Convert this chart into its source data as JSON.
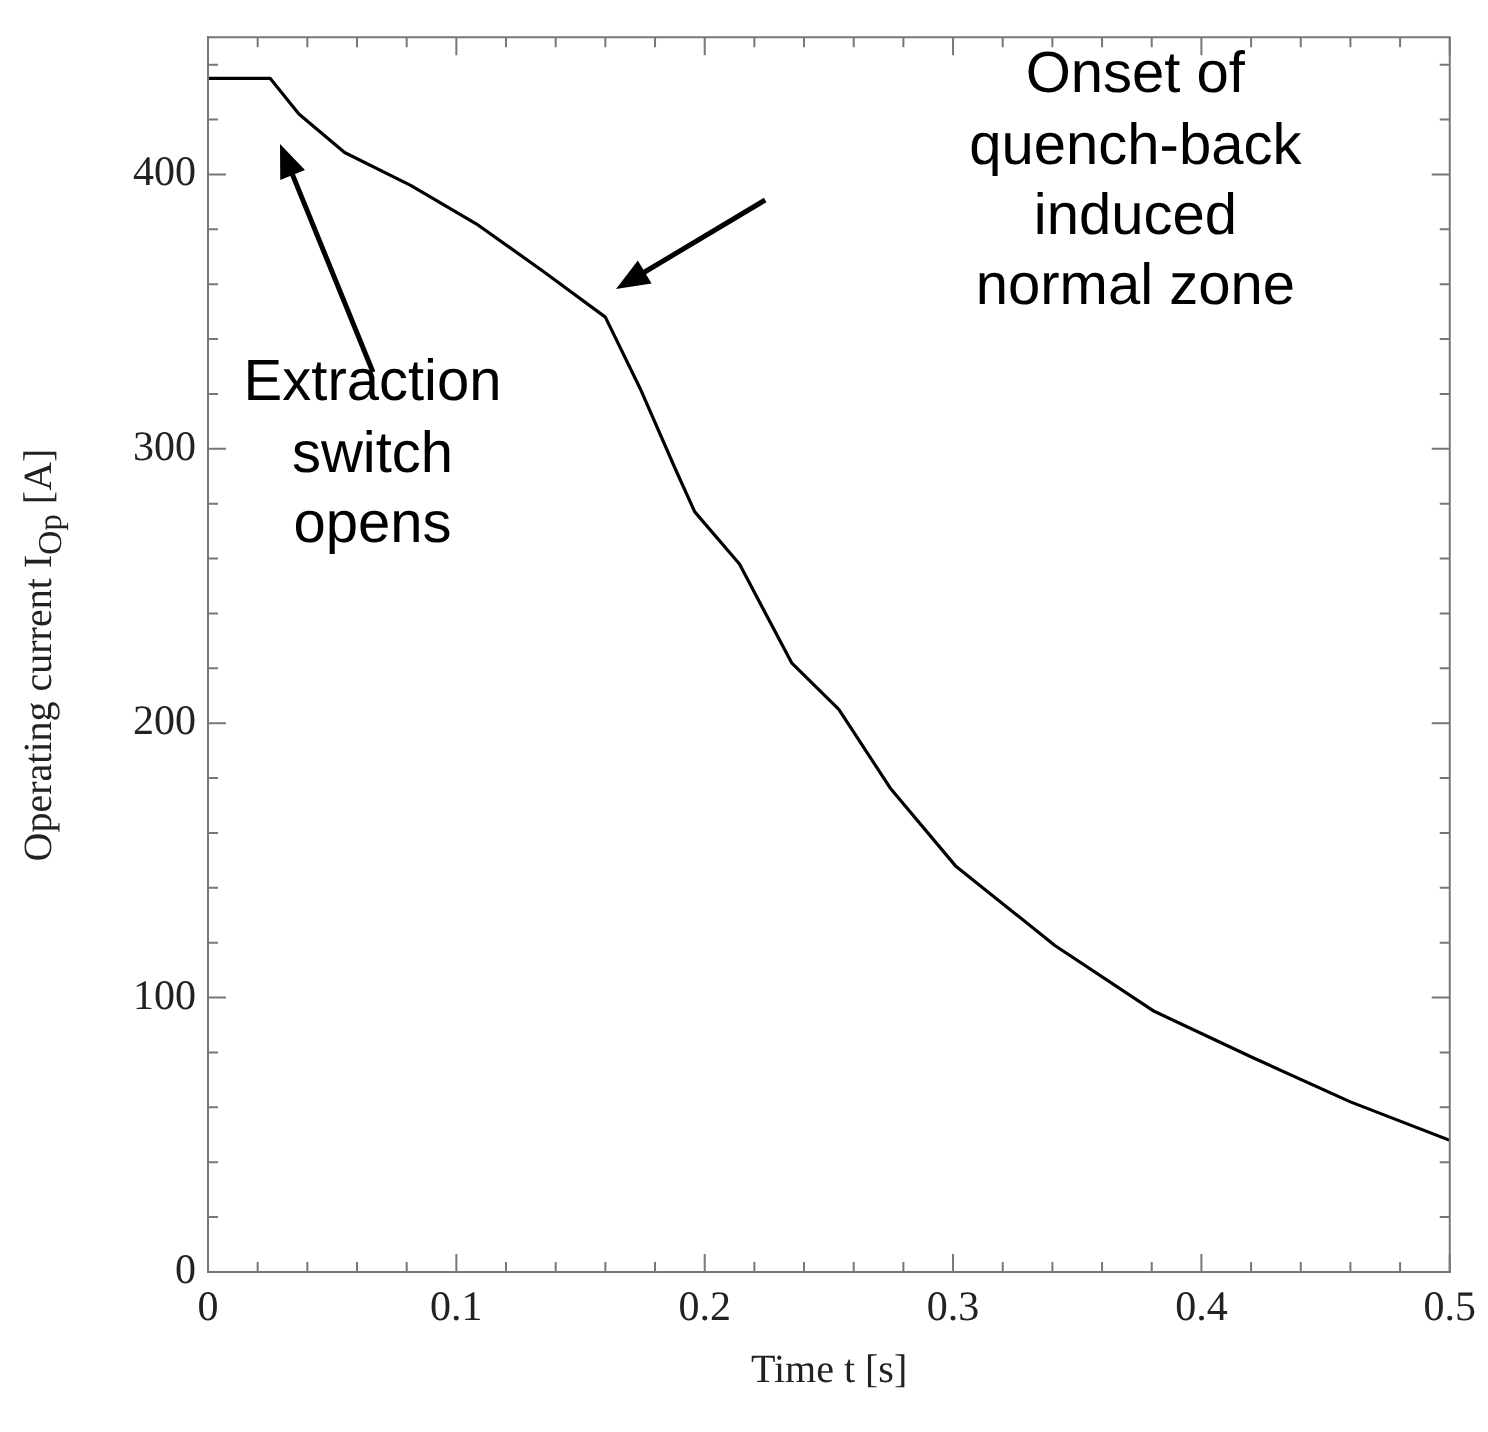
{
  "chart_data": {
    "type": "line",
    "xlabel": "Time t [s]",
    "ylabel": "Operating current I$_{Op}$ [A]",
    "x": [
      0,
      0.025,
      0.0366,
      0.055,
      0.0816,
      0.108,
      0.1345,
      0.16,
      0.174,
      0.188,
      0.196,
      0.214,
      0.235,
      0.254,
      0.275,
      0.301,
      0.341,
      0.381,
      0.421,
      0.46,
      0.5
    ],
    "series": [
      {
        "color": "#000000",
        "values": [
          435,
          435,
          422,
          408,
          396,
          382,
          365,
          348,
          322,
          293,
          277,
          258,
          222,
          205,
          176,
          148,
          119,
          95,
          78,
          62,
          48
        ]
      }
    ],
    "xlim": [
      0,
      0.5
    ],
    "xticks": [
      0,
      0.1,
      0.2,
      0.3,
      0.4,
      0.5
    ],
    "ylim": [
      0,
      450
    ],
    "yticks": [
      0,
      100,
      200,
      300,
      400
    ],
    "marker": "none",
    "line_style": "solid",
    "legend": false,
    "annotations": [
      "Extraction switch opens",
      "Onset of quench-back induced normal zone"
    ]
  }
}
